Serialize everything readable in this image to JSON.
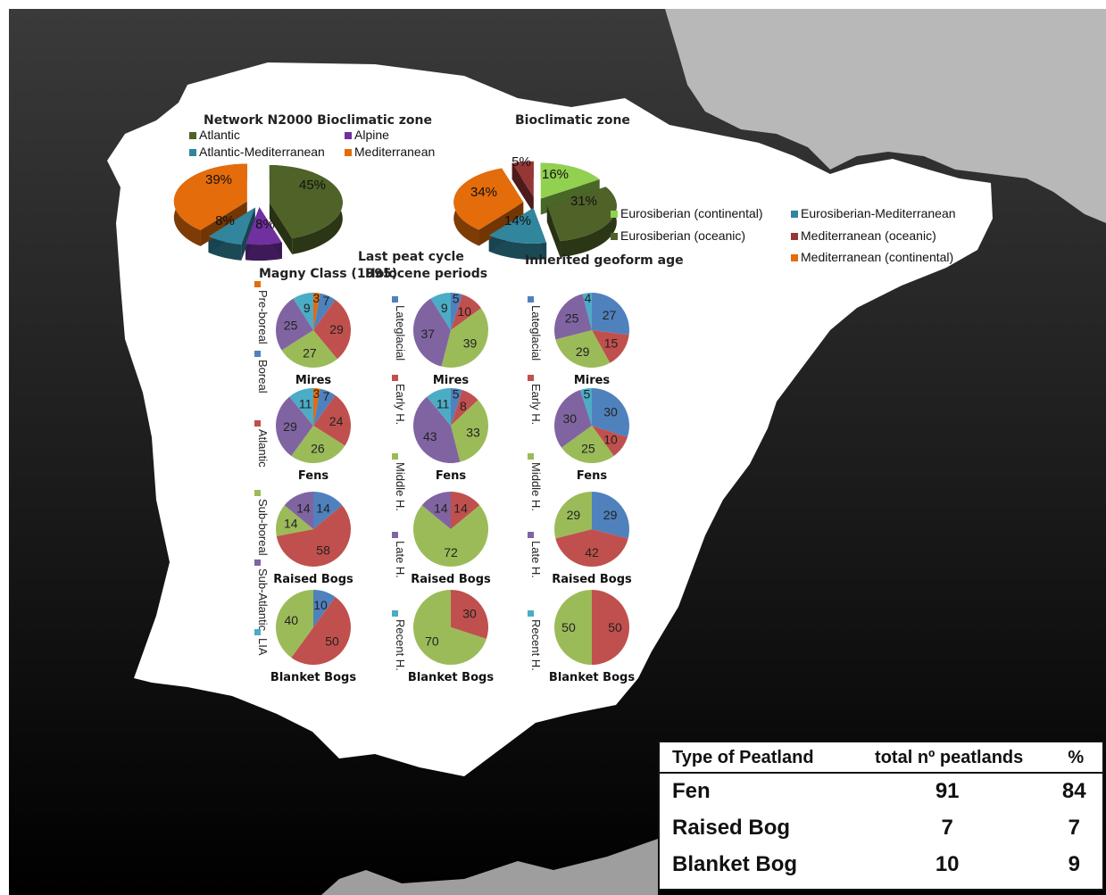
{
  "chart_data": [
    {
      "type": "pie",
      "title": "Network N2000 Bioclimatic zone",
      "legend": [
        "Atlantic",
        "Alpine",
        "Atlantic-Mediterranean",
        "Mediterranean"
      ],
      "values": [
        45,
        8,
        8,
        39
      ],
      "labels": [
        "45%",
        "8%",
        "8%",
        "39%"
      ],
      "colors": [
        "#4f6228",
        "#7030a0",
        "#31859c",
        "#e46c0a"
      ]
    },
    {
      "type": "pie",
      "title": "Bioclimatic zone",
      "legend": [
        "Eurosiberian (continental)",
        "Eurosiberian-Mediterranean",
        "Eurosiberian (oceanic)",
        "Mediterranean (oceanic)",
        "Mediterranean (continental)"
      ],
      "values": [
        16,
        31,
        14,
        34,
        5
      ],
      "labels": [
        "16%",
        "31%",
        "14%",
        "34%",
        "5%"
      ],
      "colors": [
        "#92d050",
        "#4f6228",
        "#31859c",
        "#e46c0a",
        "#953735"
      ]
    },
    {
      "type": "pie",
      "title": "Magny Class (1995)",
      "legend": [
        "Pre-boreal",
        "Boreal",
        "Atlantic",
        "Sub-boreal",
        "Sub-Atlantic",
        "LIA"
      ],
      "legend_colors": [
        "#e46c0a",
        "#4f81bd",
        "#c0504d",
        "#9bbb59",
        "#8064a2",
        "#4bacc6"
      ],
      "pies": [
        {
          "caption": "Mires",
          "values": [
            3,
            7,
            29,
            27,
            25,
            9
          ],
          "labels": [
            "3",
            "7",
            "29",
            "27",
            "25",
            "9"
          ]
        },
        {
          "caption": "Fens",
          "values": [
            3,
            7,
            24,
            26,
            29,
            11
          ],
          "labels": [
            "3",
            "7",
            "24",
            "26",
            "29",
            "11"
          ]
        },
        {
          "caption": "Raised Bogs",
          "values": [
            0,
            14,
            58,
            14,
            14,
            0
          ],
          "labels": [
            "",
            "14",
            "58",
            "14",
            "14",
            ""
          ]
        },
        {
          "caption": "Blanket Bogs",
          "values": [
            0,
            10,
            50,
            40,
            0,
            0
          ],
          "labels": [
            "",
            "10",
            "50",
            "40",
            "",
            ""
          ]
        }
      ]
    },
    {
      "type": "pie",
      "title": "Last peat cycle",
      "subtitle": "Holocene periods",
      "legend": [
        "Lateglacial",
        "Early H.",
        "Middle H.",
        "Late H.",
        "Recent H."
      ],
      "legend_colors": [
        "#4f81bd",
        "#c0504d",
        "#9bbb59",
        "#8064a2",
        "#4bacc6"
      ],
      "pies": [
        {
          "caption": "Mires",
          "values": [
            5,
            10,
            39,
            37,
            9
          ],
          "labels": [
            "5",
            "10",
            "39",
            "37",
            "9"
          ]
        },
        {
          "caption": "Fens",
          "values": [
            5,
            8,
            33,
            43,
            11
          ],
          "labels": [
            "5",
            "8",
            "33",
            "43",
            "11"
          ]
        },
        {
          "caption": "Raised Bogs",
          "values": [
            0,
            14,
            72,
            14,
            0
          ],
          "labels": [
            "",
            "14",
            "72",
            "14",
            ""
          ]
        },
        {
          "caption": "Blanket Bogs",
          "values": [
            0,
            30,
            70,
            0,
            0
          ],
          "labels": [
            "",
            "30",
            "70",
            "",
            ""
          ]
        }
      ]
    },
    {
      "type": "pie",
      "title": "Inherited geoform age",
      "legend": [
        "Lateglacial",
        "Early H.",
        "Middle H.",
        "Late H.",
        "Recent H."
      ],
      "legend_colors": [
        "#4f81bd",
        "#c0504d",
        "#9bbb59",
        "#8064a2",
        "#4bacc6"
      ],
      "pies": [
        {
          "caption": "Mires",
          "values": [
            27,
            15,
            29,
            25,
            4
          ],
          "labels": [
            "27",
            "15",
            "29",
            "25",
            "4"
          ]
        },
        {
          "caption": "Fens",
          "values": [
            30,
            10,
            25,
            30,
            5
          ],
          "labels": [
            "30",
            "10",
            "25",
            "30",
            "5"
          ]
        },
        {
          "caption": "Raised Bogs",
          "values": [
            29,
            42,
            29,
            0,
            0
          ],
          "labels": [
            "29",
            "42",
            "29",
            "",
            ""
          ]
        },
        {
          "caption": "Blanket Bogs",
          "values": [
            0,
            50,
            50,
            0,
            0
          ],
          "labels": [
            "",
            "50",
            "50",
            "",
            ""
          ]
        }
      ]
    },
    {
      "type": "table",
      "columns": [
        "Type of Peatland",
        "total nº peatlands",
        "%"
      ],
      "rows": [
        [
          "Fen",
          "91",
          "84"
        ],
        [
          "Raised Bog",
          "7",
          "7"
        ],
        [
          "Blanket Bog",
          "10",
          "9"
        ]
      ]
    }
  ]
}
